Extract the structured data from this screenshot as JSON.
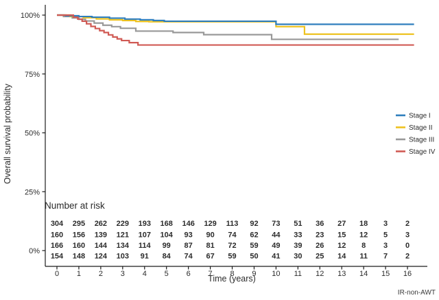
{
  "figure": {
    "ylabel": "Overall survival probability",
    "xlabel": "Time (years)",
    "risk_table_title": "Number at risk",
    "watermark": "IR-non-AWT"
  },
  "chart_data": {
    "type": "line",
    "subtype": "kaplan_meier_step",
    "title": "",
    "xlabel": "Time (years)",
    "ylabel": "Overall survival probability",
    "xlim": [
      0,
      16.5
    ],
    "ylim": [
      0,
      100
    ],
    "grid": false,
    "legend_position": "right-middle",
    "axis_color": "#1a1a1a",
    "text_color": "#2b2b2b",
    "x_ticks": [
      0,
      1,
      2,
      3,
      4,
      5,
      6,
      7,
      8,
      9,
      10,
      11,
      12,
      13,
      14,
      15,
      16
    ],
    "y_ticks": [
      {
        "value": 100,
        "label": "100%"
      },
      {
        "value": 75,
        "label": "75%"
      },
      {
        "value": 50,
        "label": "50%"
      },
      {
        "value": 25,
        "label": "25%"
      },
      {
        "value": 0,
        "label": "0%"
      }
    ],
    "series": [
      {
        "name": "Stage I",
        "color": "#2e7ebd",
        "steps": [
          [
            0,
            100
          ],
          [
            0.4,
            99.7
          ],
          [
            1.0,
            99.4
          ],
          [
            1.6,
            99.1
          ],
          [
            2.4,
            98.7
          ],
          [
            3.1,
            98.3
          ],
          [
            3.8,
            98.0
          ],
          [
            4.4,
            97.7
          ],
          [
            4.9,
            97.4
          ],
          [
            10.0,
            96.1
          ],
          [
            16.3,
            96.1
          ]
        ],
        "at_risk": [
          304,
          295,
          262,
          229,
          193,
          168,
          146,
          129,
          113,
          92,
          73,
          51,
          36,
          27,
          18,
          3,
          2
        ]
      },
      {
        "name": "Stage II",
        "color": "#eec21f",
        "steps": [
          [
            0,
            100
          ],
          [
            0.6,
            99.4
          ],
          [
            1.2,
            98.9
          ],
          [
            1.8,
            98.4
          ],
          [
            2.4,
            98.0
          ],
          [
            3.0,
            97.7
          ],
          [
            3.6,
            97.3
          ],
          [
            4.2,
            97.2
          ],
          [
            10.0,
            95.1
          ],
          [
            11.3,
            91.9
          ],
          [
            16.3,
            91.9
          ]
        ],
        "at_risk": [
          160,
          156,
          139,
          121,
          107,
          104,
          93,
          90,
          74,
          62,
          44,
          33,
          23,
          15,
          12,
          5,
          3
        ]
      },
      {
        "name": "Stage III",
        "color": "#999999",
        "steps": [
          [
            0,
            100
          ],
          [
            0.3,
            99.4
          ],
          [
            0.7,
            98.8
          ],
          [
            1.0,
            98.2
          ],
          [
            1.3,
            97.5
          ],
          [
            1.7,
            96.6
          ],
          [
            2.1,
            95.7
          ],
          [
            2.5,
            95.1
          ],
          [
            2.9,
            94.4
          ],
          [
            3.6,
            93.2
          ],
          [
            5.3,
            92.6
          ],
          [
            6.7,
            91.7
          ],
          [
            9.8,
            89.7
          ],
          [
            15.6,
            89.7
          ]
        ],
        "at_risk": [
          166,
          160,
          144,
          134,
          114,
          99,
          87,
          81,
          72,
          59,
          49,
          39,
          26,
          12,
          8,
          3,
          0
        ]
      },
      {
        "name": "Stage IV",
        "color": "#d05a54",
        "steps": [
          [
            0,
            100
          ],
          [
            0.75,
            99.1
          ],
          [
            0.95,
            98.3
          ],
          [
            1.15,
            97.4
          ],
          [
            1.35,
            96.3
          ],
          [
            1.55,
            95.2
          ],
          [
            1.75,
            94.3
          ],
          [
            1.95,
            93.4
          ],
          [
            2.15,
            92.6
          ],
          [
            2.35,
            91.6
          ],
          [
            2.55,
            90.7
          ],
          [
            2.75,
            89.9
          ],
          [
            2.95,
            89.2
          ],
          [
            3.3,
            88.3
          ],
          [
            3.7,
            87.3
          ],
          [
            16.3,
            87.3
          ]
        ],
        "at_risk": [
          154,
          148,
          124,
          103,
          91,
          84,
          74,
          67,
          59,
          50,
          41,
          30,
          25,
          14,
          11,
          7,
          2
        ]
      }
    ],
    "number_at_risk": {
      "title": "Number at risk",
      "times": [
        0,
        1,
        2,
        3,
        4,
        5,
        6,
        7,
        8,
        9,
        10,
        11,
        12,
        13,
        14,
        15,
        16
      ]
    }
  }
}
